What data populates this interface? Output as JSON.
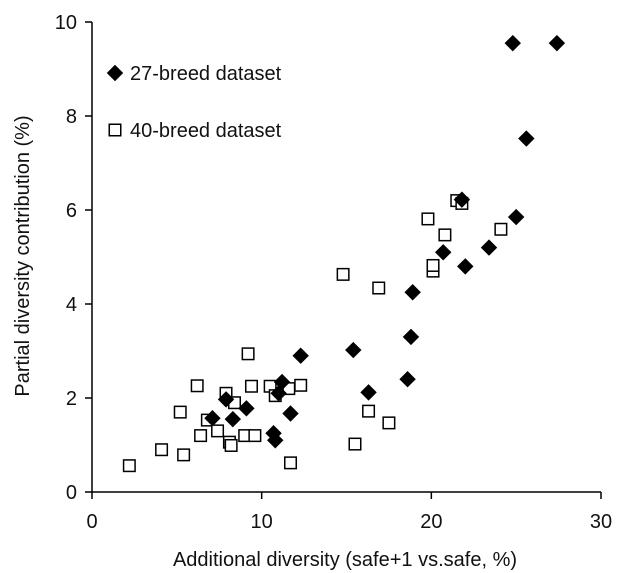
{
  "chart_data": {
    "type": "scatter",
    "xlabel": "Additional diversity  (safe+1 vs.safe, %)",
    "ylabel": "Partial diversity contribution (%)",
    "xlim": [
      0,
      30
    ],
    "ylim": [
      0,
      10
    ],
    "xticks": [
      0,
      10,
      20,
      30
    ],
    "yticks": [
      0,
      2,
      4,
      6,
      8,
      10
    ],
    "grid": false,
    "legend_position": "top-left",
    "series": [
      {
        "name": "27-breed dataset",
        "marker": "filled-diamond",
        "color": "#000000",
        "points": [
          [
            7.1,
            1.57
          ],
          [
            7.9,
            1.97
          ],
          [
            8.3,
            1.55
          ],
          [
            9.1,
            1.78
          ],
          [
            10.7,
            1.25
          ],
          [
            10.8,
            1.1
          ],
          [
            11.0,
            2.1
          ],
          [
            11.2,
            2.34
          ],
          [
            11.7,
            1.67
          ],
          [
            12.3,
            2.9
          ],
          [
            15.4,
            3.02
          ],
          [
            16.3,
            2.12
          ],
          [
            18.6,
            2.4
          ],
          [
            18.8,
            3.3
          ],
          [
            18.9,
            4.25
          ],
          [
            20.7,
            5.1
          ],
          [
            21.8,
            6.22
          ],
          [
            22.0,
            4.8
          ],
          [
            23.4,
            5.2
          ],
          [
            24.8,
            9.55
          ],
          [
            25.0,
            5.85
          ],
          [
            25.6,
            7.52
          ],
          [
            27.4,
            9.55
          ]
        ]
      },
      {
        "name": "40-breed dataset",
        "marker": "open-square",
        "color": "#000000",
        "points": [
          [
            2.2,
            0.56
          ],
          [
            4.1,
            0.9
          ],
          [
            5.2,
            1.7
          ],
          [
            5.4,
            0.79
          ],
          [
            6.2,
            2.26
          ],
          [
            6.4,
            1.2
          ],
          [
            6.8,
            1.53
          ],
          [
            7.4,
            1.3
          ],
          [
            7.9,
            2.1
          ],
          [
            8.1,
            1.06
          ],
          [
            8.2,
            0.99
          ],
          [
            8.4,
            1.9
          ],
          [
            9.0,
            1.2
          ],
          [
            9.2,
            2.94
          ],
          [
            9.4,
            2.25
          ],
          [
            9.6,
            1.2
          ],
          [
            10.5,
            2.25
          ],
          [
            10.8,
            2.05
          ],
          [
            11.6,
            2.2
          ],
          [
            11.7,
            0.62
          ],
          [
            12.3,
            2.27
          ],
          [
            14.8,
            4.63
          ],
          [
            15.5,
            1.02
          ],
          [
            16.3,
            1.72
          ],
          [
            16.9,
            4.34
          ],
          [
            17.5,
            1.47
          ],
          [
            19.8,
            5.81
          ],
          [
            20.1,
            4.7
          ],
          [
            20.1,
            4.82
          ],
          [
            20.8,
            5.47
          ],
          [
            21.5,
            6.2
          ],
          [
            21.8,
            6.14
          ],
          [
            24.1,
            5.59
          ]
        ]
      }
    ]
  }
}
